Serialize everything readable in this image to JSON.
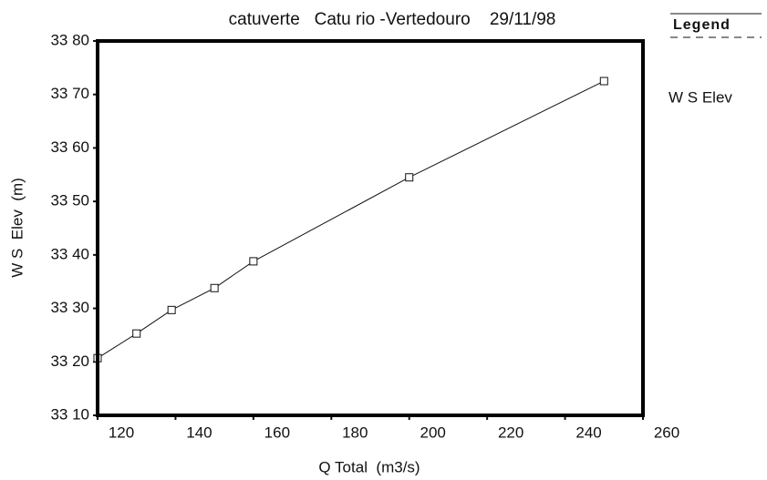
{
  "chart_data": {
    "type": "line",
    "title": "catuverte   Catu rio -Vertedouro    29/11/98",
    "x_label": "Q Total  (m3/s)",
    "y_label": "W S  Elev  (m)",
    "legend_title": "Legend",
    "legend": "right",
    "x": [
      120,
      130,
      139,
      150,
      160,
      200,
      250
    ],
    "series": [
      {
        "name": "W S Elev",
        "color": "#111111",
        "values": [
          33.207,
          33.253,
          33.297,
          33.338,
          33.388,
          33.545,
          33.725
        ]
      }
    ],
    "xlim": [
      120,
      260
    ],
    "xticks": [
      120,
      140,
      160,
      180,
      200,
      220,
      240,
      260
    ],
    "ylim": [
      33.1,
      33.8
    ],
    "yticks": [
      {
        "value": 33.1,
        "label": "33 10"
      },
      {
        "value": 33.2,
        "label": "33 20"
      },
      {
        "value": 33.3,
        "label": "33 30"
      },
      {
        "value": 33.4,
        "label": "33 40"
      },
      {
        "value": 33.5,
        "label": "33 50"
      },
      {
        "value": 33.6,
        "label": "33 60"
      },
      {
        "value": 33.7,
        "label": "33 70"
      },
      {
        "value": 33.8,
        "label": "33 80"
      }
    ]
  }
}
